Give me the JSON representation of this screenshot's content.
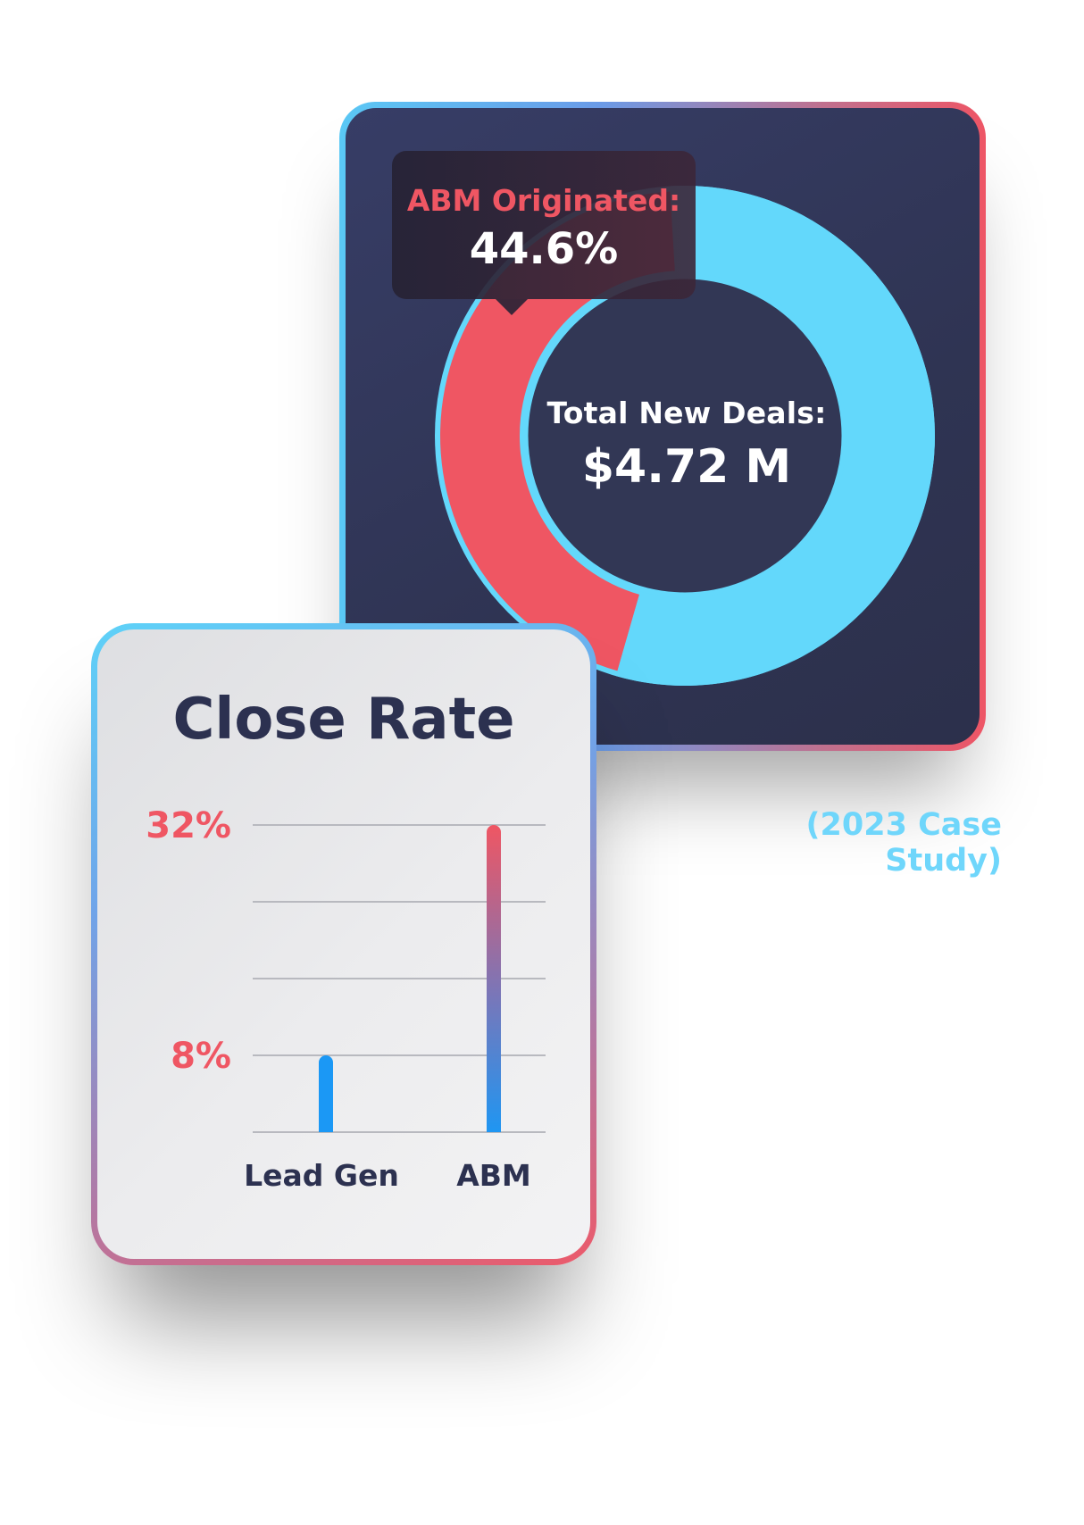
{
  "donut": {
    "tooltip_label": "ABM Originated:",
    "tooltip_value": "44.6%",
    "center_label": "Total New Deals:",
    "center_value": "$4.72 M"
  },
  "case_study": "(2023 Case Study)",
  "colors": {
    "accent_red": "#ef5663",
    "accent_cyan": "#63d8fb",
    "bar_blue": "#1b98f5",
    "navy": "#2f3453"
  },
  "chart_data": [
    {
      "type": "pie",
      "title": "",
      "slices": [
        {
          "label": "ABM Originated",
          "value": 44.6,
          "color": "#ef5663"
        },
        {
          "label": "",
          "value": 55.4,
          "color": "#63d8fb"
        }
      ]
    },
    {
      "type": "bar",
      "title": "Close Rate",
      "categories": [
        "Lead Gen",
        "ABM"
      ],
      "values": [
        8,
        32
      ],
      "tick_labels": [
        "32%",
        "8%"
      ],
      "tick_values": [
        32,
        8
      ],
      "ylim": [
        0,
        32
      ],
      "grid": true
    }
  ]
}
